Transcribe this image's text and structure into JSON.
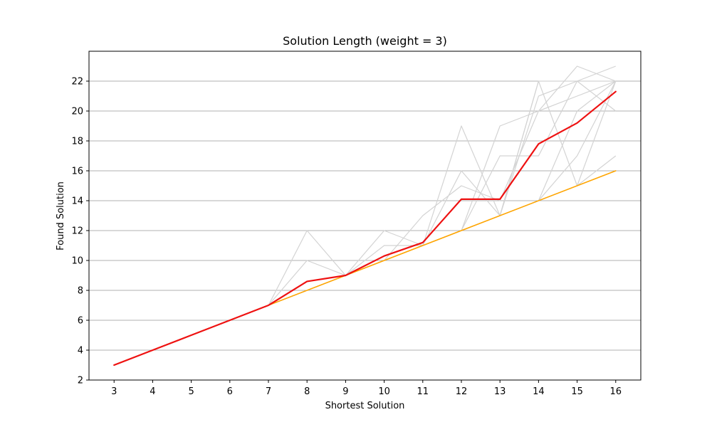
{
  "chart_data": {
    "type": "line",
    "title": "Solution Length (weight = 3)",
    "xlabel": "Shortest Solution",
    "ylabel": "Found Solution",
    "xlim": [
      2.35,
      16.65
    ],
    "ylim": [
      2,
      24
    ],
    "x_ticks": [
      3,
      4,
      5,
      6,
      7,
      8,
      9,
      10,
      11,
      12,
      13,
      14,
      15,
      16
    ],
    "y_ticks": [
      2,
      4,
      6,
      8,
      10,
      12,
      14,
      16,
      18,
      20,
      22
    ],
    "grid": "horizontal",
    "colors": {
      "individual": "#d3d3d3",
      "mean": "#ee1111",
      "optimal": "#ffa500",
      "grid": "#b0b0b0",
      "axes": "#000000"
    },
    "individual_runs": [
      {
        "x": [
          7,
          8,
          9,
          10,
          11,
          12,
          13,
          14,
          15,
          16
        ],
        "values": [
          7,
          12,
          9,
          12,
          11,
          19,
          13,
          22,
          22,
          20
        ]
      },
      {
        "x": [
          7,
          8,
          9,
          10,
          11,
          12,
          13,
          14,
          15,
          16
        ],
        "values": [
          7,
          10,
          9,
          11,
          11,
          16,
          13,
          21,
          22,
          22
        ]
      },
      {
        "x": [
          7,
          8,
          9,
          10,
          11,
          12,
          13,
          14,
          15,
          16
        ],
        "values": [
          7,
          8,
          9,
          10,
          13,
          15,
          14,
          20,
          21,
          22
        ]
      },
      {
        "x": [
          7,
          8,
          9,
          10,
          11,
          12,
          13,
          14,
          15,
          16
        ],
        "values": [
          7,
          8,
          9,
          10,
          11,
          12,
          19,
          20,
          23,
          22
        ]
      },
      {
        "x": [
          7,
          8,
          9,
          10,
          11,
          12,
          13,
          14,
          15,
          16
        ],
        "values": [
          7,
          8,
          9,
          10,
          11,
          12,
          17,
          17,
          22,
          23
        ]
      },
      {
        "x": [
          7,
          8,
          9,
          10,
          11,
          12,
          13,
          14,
          15,
          16
        ],
        "values": [
          7,
          8,
          9,
          10,
          11,
          12,
          13,
          22,
          15,
          22
        ]
      },
      {
        "x": [
          7,
          8,
          9,
          10,
          11,
          12,
          13,
          14,
          15,
          16
        ],
        "values": [
          7,
          8,
          9,
          10,
          11,
          12,
          13,
          14,
          20,
          22
        ]
      },
      {
        "x": [
          7,
          8,
          9,
          10,
          11,
          12,
          13,
          14,
          15,
          16
        ],
        "values": [
          7,
          8,
          9,
          10,
          11,
          12,
          13,
          14,
          17,
          22
        ]
      },
      {
        "x": [
          7,
          8,
          9,
          10,
          11,
          12,
          13,
          14,
          15,
          16
        ],
        "values": [
          7,
          8,
          9,
          10,
          11,
          12,
          13,
          14,
          15,
          17
        ]
      }
    ],
    "series": [
      {
        "x": [
          3,
          4,
          5,
          6,
          7,
          8,
          9,
          10,
          11,
          12,
          13,
          14,
          15,
          16
        ],
        "values": [
          3,
          4,
          5,
          6,
          7,
          8.6,
          9,
          10.3,
          11.2,
          14.1,
          14.1,
          17.8,
          19.2,
          21.3
        ],
        "color": "#ee1111"
      },
      {
        "x": [
          3,
          16
        ],
        "values": [
          3,
          16
        ],
        "color": "#ffa500"
      }
    ]
  }
}
